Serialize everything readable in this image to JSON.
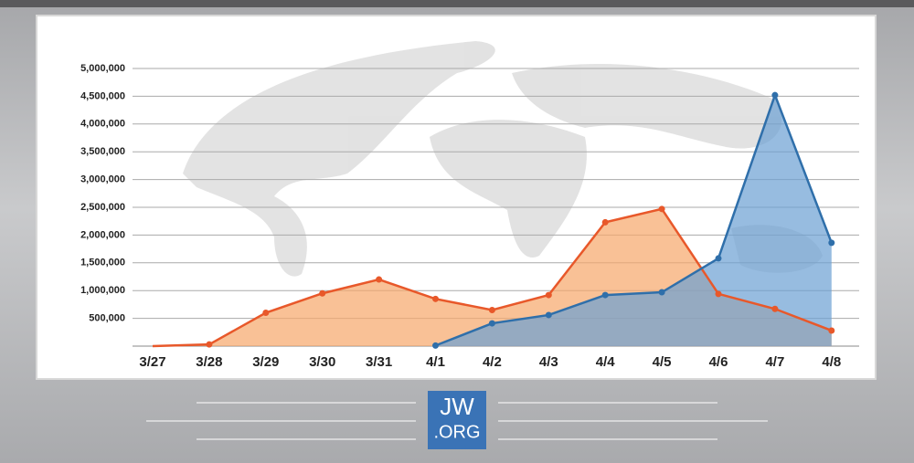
{
  "chart_data": {
    "type": "area",
    "categories": [
      "3/27",
      "3/28",
      "3/29",
      "3/30",
      "3/31",
      "4/1",
      "4/2",
      "4/3",
      "4/4",
      "4/5",
      "4/6",
      "4/7",
      "4/8"
    ],
    "series": [
      {
        "color": "#e8582a",
        "fill": "#f6a66a",
        "values": [
          0,
          30000,
          600000,
          950000,
          1200000,
          850000,
          650000,
          920000,
          2230000,
          2470000,
          940000,
          670000,
          280000
        ]
      },
      {
        "color": "#2f6faa",
        "fill": "#6b9fd3",
        "values": [
          null,
          null,
          null,
          null,
          null,
          10000,
          410000,
          560000,
          920000,
          970000,
          1580000,
          4520000,
          1860000
        ]
      }
    ],
    "ylim": [
      0,
      5000000
    ],
    "yticks": [
      {
        "value": 500000,
        "label": "500,000"
      },
      {
        "value": 1000000,
        "label": "1,000,000"
      },
      {
        "value": 1500000,
        "label": "1,500,000"
      },
      {
        "value": 2000000,
        "label": "2,000,000"
      },
      {
        "value": 2500000,
        "label": "2,500,000"
      },
      {
        "value": 3000000,
        "label": "3,000,000"
      },
      {
        "value": 3500000,
        "label": "3,500,000"
      },
      {
        "value": 4000000,
        "label": "4,000,000"
      },
      {
        "value": 4500000,
        "label": "4,500,000"
      },
      {
        "value": 5000000,
        "label": "5,000,000"
      }
    ],
    "grid": true
  },
  "logo": {
    "line1": "JW",
    "line2": ".ORG"
  }
}
